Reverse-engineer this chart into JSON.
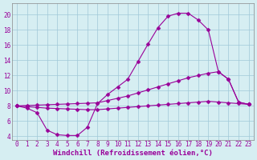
{
  "xlabel": "Windchill (Refroidissement éolien,°C)",
  "series1_x": [
    0,
    1,
    2,
    3,
    4,
    5,
    6,
    7,
    8,
    9,
    10,
    11,
    12,
    13,
    14,
    15,
    16,
    17,
    18,
    19,
    20,
    21,
    22,
    23
  ],
  "series1_y": [
    8.0,
    7.7,
    7.1,
    4.8,
    4.2,
    4.1,
    4.1,
    5.2,
    8.3,
    9.5,
    10.5,
    11.5,
    13.8,
    16.1,
    18.3,
    19.8,
    20.2,
    20.2,
    19.3,
    18.0,
    12.5,
    11.5,
    8.5,
    8.2
  ],
  "series2_x": [
    0,
    1,
    2,
    3,
    4,
    5,
    6,
    7,
    8,
    9,
    10,
    11,
    12,
    13,
    14,
    15,
    16,
    17,
    18,
    19,
    20,
    21,
    22,
    23
  ],
  "series2_y": [
    8.0,
    8.05,
    8.1,
    8.15,
    8.2,
    8.25,
    8.3,
    8.35,
    8.4,
    8.7,
    9.0,
    9.3,
    9.7,
    10.1,
    10.5,
    10.9,
    11.3,
    11.7,
    12.0,
    12.3,
    12.5,
    11.5,
    8.5,
    8.2
  ],
  "series3_x": [
    0,
    1,
    2,
    3,
    4,
    5,
    6,
    7,
    8,
    9,
    10,
    11,
    12,
    13,
    14,
    15,
    16,
    17,
    18,
    19,
    20,
    21,
    22,
    23
  ],
  "series3_y": [
    8.0,
    7.9,
    7.8,
    7.7,
    7.65,
    7.6,
    7.55,
    7.5,
    7.5,
    7.6,
    7.7,
    7.8,
    7.9,
    8.0,
    8.1,
    8.2,
    8.3,
    8.4,
    8.5,
    8.6,
    8.5,
    8.4,
    8.3,
    8.2
  ],
  "ylim": [
    3.5,
    21.5
  ],
  "xlim": [
    -0.5,
    23.5
  ],
  "bg_color": "#d6eef2",
  "grid_color": "#a0c8d8",
  "line_color": "#990099",
  "marker_size": 2.5,
  "yticks": [
    4,
    6,
    8,
    10,
    12,
    14,
    16,
    18,
    20
  ],
  "xticks": [
    0,
    1,
    2,
    3,
    4,
    5,
    6,
    7,
    8,
    9,
    10,
    11,
    12,
    13,
    14,
    15,
    16,
    17,
    18,
    19,
    20,
    21,
    22,
    23
  ],
  "tick_fontsize": 5.5,
  "xlabel_fontsize": 6.5,
  "label_color": "#990099"
}
